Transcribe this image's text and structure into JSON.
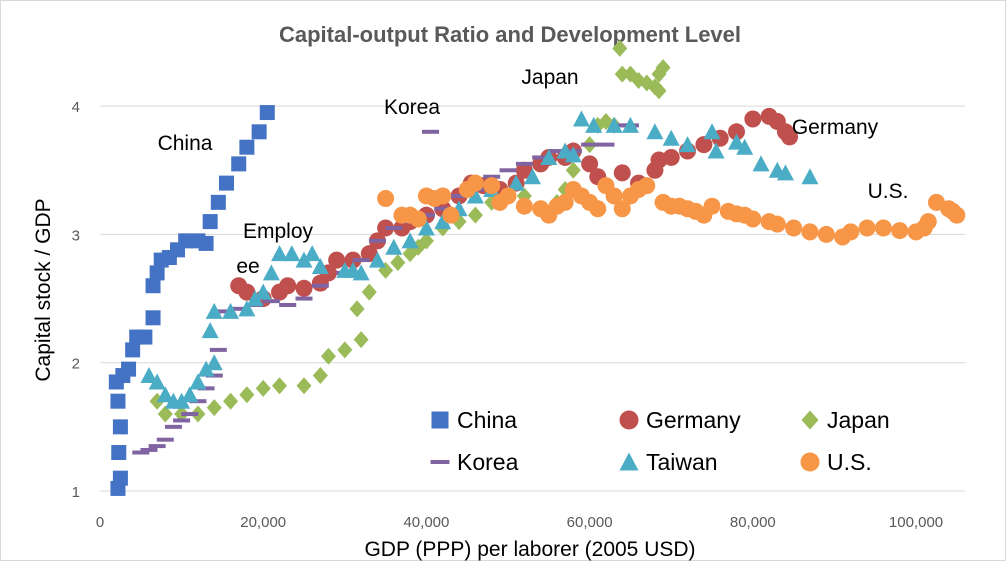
{
  "chart_data": {
    "type": "scatter",
    "title": "Capital-output Ratio and Development Level",
    "x_label": "GDP (PPP) per laborer (2005 USD)",
    "y_label": "Capital stock / GDP",
    "xlim": [
      0,
      106000
    ],
    "ylim": [
      1,
      4.5
    ],
    "xticks": [
      0,
      {
        "value": 20000,
        "label": "20,000"
      },
      {
        "value": 40000,
        "label": "40,000"
      },
      {
        "value": 60000,
        "label": "60,000"
      },
      {
        "value": 80000,
        "label": "80,000"
      },
      {
        "value": 100000,
        "label": "100,000"
      }
    ],
    "yticks": [
      1,
      2,
      3,
      4
    ],
    "grid": true,
    "legend": "bottom-right",
    "annotations": [
      "China",
      "Korea",
      "Japan",
      "Germany",
      "U.S.",
      "Employ",
      "ee"
    ],
    "series": [
      {
        "name": "China",
        "color": "#4472c4",
        "marker": "square",
        "x": [
          2200,
          2500,
          2300,
          2500,
          2200,
          2000,
          2800,
          3500,
          4000,
          4500,
          5500,
          6500,
          6500,
          7000,
          7500,
          8500,
          9500,
          10500,
          12000,
          13000,
          13500,
          14500,
          15500,
          17000,
          18000,
          19500,
          20500
        ],
        "values": [
          1.02,
          1.1,
          1.3,
          1.5,
          1.7,
          1.85,
          1.9,
          1.95,
          2.1,
          2.2,
          2.2,
          2.35,
          2.6,
          2.7,
          2.8,
          2.82,
          2.88,
          2.95,
          2.95,
          2.93,
          3.1,
          3.25,
          3.4,
          3.55,
          3.68,
          3.8,
          3.95
        ]
      },
      {
        "name": "Germany",
        "color": "#c0504d",
        "marker": "circle",
        "x": [
          17000,
          18000,
          20000,
          22000,
          23000,
          25000,
          27000,
          28000,
          29000,
          31000,
          33000,
          34000,
          35000,
          37000,
          38000,
          40000,
          42000,
          44000,
          45500,
          47000,
          49000,
          51000,
          52000,
          54000,
          55000,
          57000,
          58000,
          60000,
          61000,
          64000,
          66000,
          68000,
          68500,
          70000,
          72000,
          74000,
          76000,
          78000,
          80000,
          82000,
          83000,
          84000,
          84500
        ],
        "values": [
          2.6,
          2.55,
          2.5,
          2.55,
          2.6,
          2.58,
          2.62,
          2.7,
          2.8,
          2.8,
          2.85,
          2.95,
          3.05,
          3.05,
          3.1,
          3.15,
          3.2,
          3.3,
          3.4,
          3.38,
          3.35,
          3.4,
          3.5,
          3.55,
          3.6,
          3.6,
          3.65,
          3.55,
          3.45,
          3.48,
          3.4,
          3.5,
          3.58,
          3.6,
          3.65,
          3.7,
          3.75,
          3.8,
          3.9,
          3.92,
          3.88,
          3.8,
          3.76
        ]
      },
      {
        "name": "Japan",
        "color": "#9bbb59",
        "marker": "diamond",
        "x": [
          7000,
          8000,
          10000,
          12000,
          14000,
          16000,
          18000,
          20000,
          22000,
          25000,
          27000,
          28000,
          30000,
          32000,
          31500,
          33000,
          35000,
          36500,
          38000,
          39000,
          40000,
          42000,
          44000,
          46000,
          48000,
          50000,
          52000,
          54000,
          56000,
          57000,
          58000,
          60000,
          61000,
          62000,
          63000,
          64000,
          65000,
          66000,
          67000,
          68000,
          68500,
          69000,
          68500,
          63700
        ],
        "values": [
          1.7,
          1.6,
          1.6,
          1.6,
          1.65,
          1.7,
          1.75,
          1.8,
          1.82,
          1.82,
          1.9,
          2.05,
          2.1,
          2.18,
          2.42,
          2.55,
          2.72,
          2.78,
          2.85,
          2.9,
          2.95,
          3.05,
          3.1,
          3.15,
          3.25,
          3.3,
          3.3,
          3.2,
          3.25,
          3.35,
          3.5,
          3.7,
          3.85,
          3.88,
          3.85,
          4.25,
          4.25,
          4.2,
          4.18,
          4.15,
          4.12,
          4.3,
          4.25,
          4.45
        ]
      },
      {
        "name": "Korea",
        "color": "#8064a2",
        "marker": "dash",
        "x": [
          5000,
          6000,
          7000,
          8000,
          9000,
          10000,
          11000,
          12000,
          13000,
          14000,
          14500,
          15000,
          17000,
          19000,
          21000,
          23000,
          25000,
          27000,
          30000,
          32000,
          34000,
          36000,
          38000,
          40000,
          42000,
          44000,
          46000,
          48000,
          50000,
          52000,
          54000,
          56000,
          58000,
          60000,
          62000,
          64000,
          65000,
          40500
        ],
        "values": [
          1.3,
          1.32,
          1.35,
          1.4,
          1.5,
          1.55,
          1.6,
          1.7,
          1.8,
          1.9,
          2.1,
          2.4,
          2.42,
          2.45,
          2.48,
          2.45,
          2.5,
          2.6,
          2.7,
          2.8,
          2.95,
          3.05,
          3.1,
          3.15,
          3.2,
          3.3,
          3.35,
          3.45,
          3.5,
          3.55,
          3.6,
          3.65,
          3.65,
          3.7,
          3.7,
          3.85,
          3.85,
          3.8
        ]
      },
      {
        "name": "Taiwan",
        "color": "#4bacc6",
        "marker": "triangle",
        "x": [
          6000,
          7000,
          8000,
          9000,
          10000,
          11000,
          12000,
          13000,
          14000,
          13500,
          14000,
          16000,
          18000,
          19000,
          20000,
          21000,
          22000,
          23500,
          25000,
          26000,
          27000,
          30000,
          31000,
          32000,
          34000,
          36000,
          38000,
          40000,
          42000,
          44000,
          46000,
          48000,
          51000,
          53000,
          55000,
          57000,
          58000,
          59000,
          60500,
          63000,
          65000,
          68000,
          70000,
          72000,
          75000,
          75500,
          78000,
          79000,
          81000,
          83000,
          84000,
          87000
        ],
        "values": [
          1.9,
          1.85,
          1.75,
          1.7,
          1.7,
          1.75,
          1.85,
          1.95,
          2.0,
          2.25,
          2.4,
          2.4,
          2.42,
          2.5,
          2.55,
          2.7,
          2.85,
          2.85,
          2.8,
          2.85,
          2.75,
          2.72,
          2.72,
          2.7,
          2.8,
          2.9,
          2.95,
          3.05,
          3.1,
          3.2,
          3.3,
          3.35,
          3.4,
          3.45,
          3.6,
          3.65,
          3.62,
          3.9,
          3.85,
          3.85,
          3.85,
          3.8,
          3.75,
          3.7,
          3.8,
          3.65,
          3.72,
          3.68,
          3.55,
          3.5,
          3.48,
          3.45
        ]
      },
      {
        "name": "U.S.",
        "color": "#f79646",
        "marker": "circle",
        "x": [
          35000,
          37000,
          38000,
          39000,
          40000,
          41000,
          42000,
          43000,
          45000,
          46000,
          48000,
          49000,
          50000,
          52000,
          54000,
          55000,
          56000,
          57000,
          58000,
          59000,
          60000,
          61000,
          62000,
          63000,
          64000,
          65000,
          66000,
          67000,
          69000,
          70000,
          71000,
          72000,
          73000,
          74000,
          75000,
          77000,
          78000,
          79000,
          80000,
          82000,
          83000,
          85000,
          87000,
          89000,
          91000,
          92000,
          94000,
          96000,
          98000,
          100000,
          101000,
          101500,
          102500,
          104000,
          104500,
          105000
        ],
        "values": [
          3.28,
          3.15,
          3.15,
          3.12,
          3.3,
          3.28,
          3.3,
          3.15,
          3.35,
          3.4,
          3.38,
          3.25,
          3.3,
          3.22,
          3.2,
          3.15,
          3.22,
          3.25,
          3.35,
          3.3,
          3.25,
          3.2,
          3.38,
          3.3,
          3.2,
          3.3,
          3.35,
          3.38,
          3.25,
          3.22,
          3.22,
          3.2,
          3.18,
          3.15,
          3.22,
          3.18,
          3.16,
          3.15,
          3.12,
          3.1,
          3.08,
          3.05,
          3.02,
          3.0,
          2.98,
          3.02,
          3.05,
          3.05,
          3.03,
          3.02,
          3.05,
          3.1,
          3.25,
          3.2,
          3.18,
          3.15
        ]
      }
    ]
  }
}
